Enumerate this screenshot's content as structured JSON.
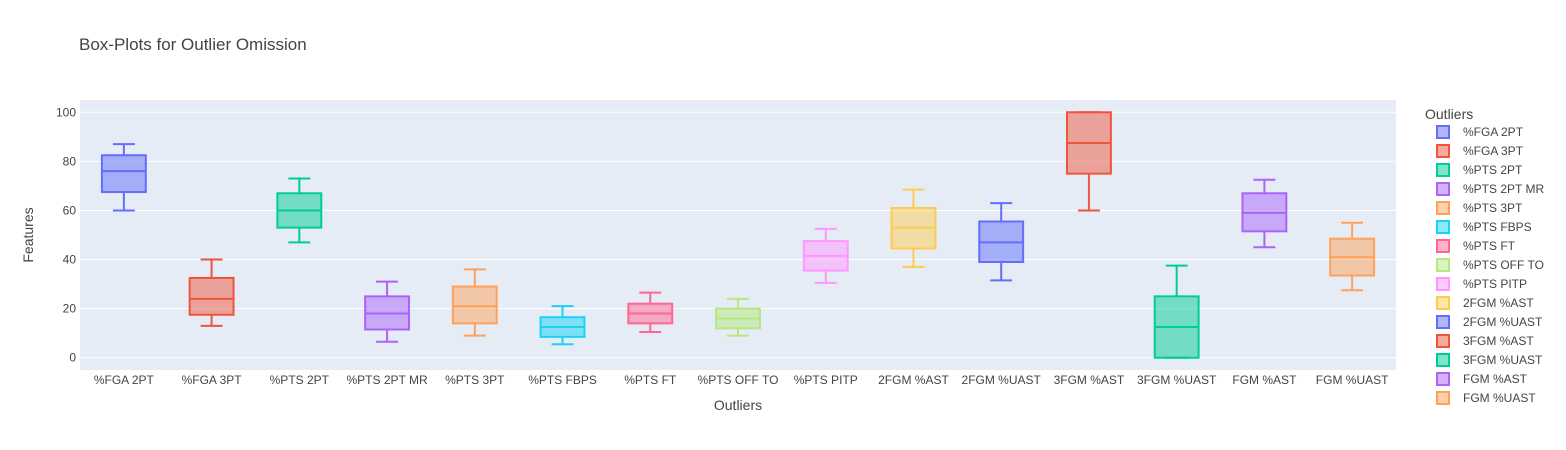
{
  "chart_data": {
    "type": "box",
    "title": "Box-Plots for Outlier Omission",
    "xlabel": "Outliers",
    "ylabel": "Features",
    "ylim": [
      -5,
      105
    ],
    "yticks": [
      0,
      20,
      40,
      60,
      80,
      100
    ],
    "grid": true,
    "legend_title": "Outliers",
    "legend_position": "right",
    "series": [
      {
        "name": "%FGA 2PT",
        "color": "#636efa",
        "min": 60,
        "q1": 67.5,
        "median": 76,
        "q3": 82.5,
        "max": 87
      },
      {
        "name": "%FGA 3PT",
        "color": "#EF553B",
        "min": 13,
        "q1": 17.5,
        "median": 24,
        "q3": 32.5,
        "max": 40
      },
      {
        "name": "%PTS 2PT",
        "color": "#00cc96",
        "min": 47,
        "q1": 53,
        "median": 60,
        "q3": 67,
        "max": 73
      },
      {
        "name": "%PTS 2PT MR",
        "color": "#ab63fa",
        "min": 6.5,
        "q1": 11.5,
        "median": 18,
        "q3": 25,
        "max": 31
      },
      {
        "name": "%PTS 3PT",
        "color": "#FFA15A",
        "min": 9,
        "q1": 14,
        "median": 21,
        "q3": 29,
        "max": 36
      },
      {
        "name": "%PTS FBPS",
        "color": "#19d3f3",
        "min": 5.5,
        "q1": 8.5,
        "median": 12.5,
        "q3": 16.5,
        "max": 21
      },
      {
        "name": "%PTS FT",
        "color": "#FF6692",
        "min": 10.5,
        "q1": 14,
        "median": 18,
        "q3": 22,
        "max": 26.5
      },
      {
        "name": "%PTS OFF TO",
        "color": "#B6E880",
        "min": 9,
        "q1": 12,
        "median": 16,
        "q3": 20,
        "max": 24
      },
      {
        "name": "%PTS PITP",
        "color": "#FF97FF",
        "min": 30.5,
        "q1": 35.5,
        "median": 41.5,
        "q3": 47.5,
        "max": 52.5
      },
      {
        "name": "2FGM %AST",
        "color": "#FECB52",
        "min": 37,
        "q1": 44.5,
        "median": 53,
        "q3": 61,
        "max": 68.5
      },
      {
        "name": "2FGM %UAST",
        "color": "#636efa",
        "min": 31.5,
        "q1": 39,
        "median": 47,
        "q3": 55.5,
        "max": 63
      },
      {
        "name": "3FGM %AST",
        "color": "#EF553B",
        "min": 60,
        "q1": 75,
        "median": 87.5,
        "q3": 100,
        "max": 100
      },
      {
        "name": "3FGM %UAST",
        "color": "#00cc96",
        "min": 0,
        "q1": 0,
        "median": 12.5,
        "q3": 25,
        "max": 37.5
      },
      {
        "name": "FGM %AST",
        "color": "#ab63fa",
        "min": 45,
        "q1": 51.5,
        "median": 59,
        "q3": 67,
        "max": 72.5
      },
      {
        "name": "FGM %UAST",
        "color": "#FFA15A",
        "min": 27.5,
        "q1": 33.5,
        "median": 41,
        "q3": 48.5,
        "max": 55
      }
    ]
  }
}
